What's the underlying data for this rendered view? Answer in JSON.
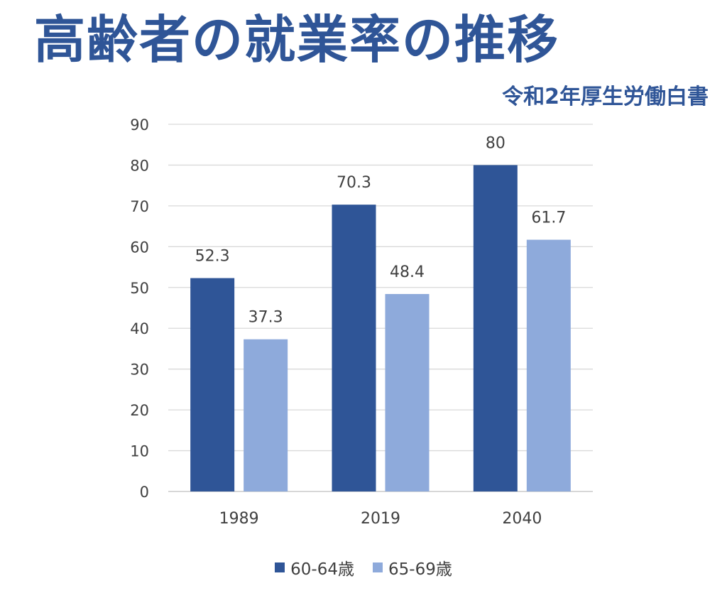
{
  "title": "高齢者の就業率の推移",
  "subtitle": "令和2年厚生労働白書",
  "colors": {
    "title": "#2f5597",
    "series_1": "#2f5597",
    "series_2": "#8eaadb",
    "grid": "#d9d9d9",
    "text": "#404040"
  },
  "chart_data": {
    "type": "bar",
    "categories": [
      "1989",
      "2019",
      "2040"
    ],
    "series": [
      {
        "name": "60-64歳",
        "values": [
          52.3,
          70.3,
          80
        ]
      },
      {
        "name": "65-69歳",
        "values": [
          37.3,
          48.4,
          61.7
        ]
      }
    ],
    "data_labels": [
      [
        "52.3",
        "70.3",
        "80"
      ],
      [
        "37.3",
        "48.4",
        "61.7"
      ]
    ],
    "y_ticks": [
      "0",
      "10",
      "20",
      "30",
      "40",
      "50",
      "60",
      "70",
      "80",
      "90"
    ],
    "ylim": [
      0,
      90
    ],
    "grid": true,
    "legend_position": "bottom"
  }
}
